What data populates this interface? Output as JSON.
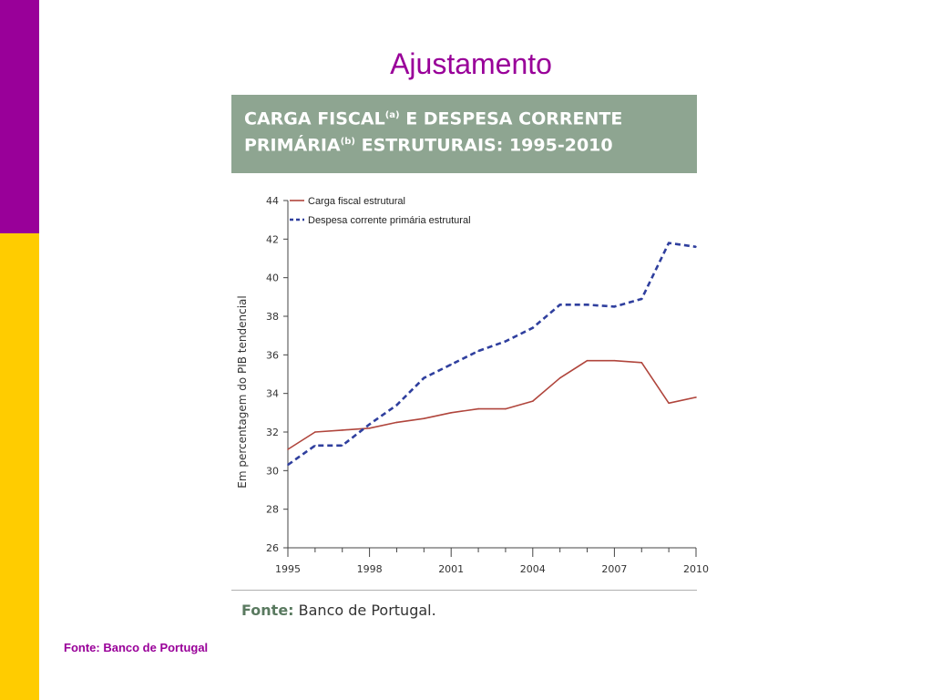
{
  "slide": {
    "title": "Ajustamento",
    "footer_source": "Fonte: Banco de Portugal"
  },
  "chart_header": {
    "title_line1": "CARGA FISCAL",
    "title_sup1": "(a)",
    "title_line1_rest": " E DESPESA CORRENTE",
    "title_line2": "PRIMÁRIA",
    "title_sup2": "(b)",
    "title_line2_rest": " ESTRUTURAIS: 1995-2010"
  },
  "chart_source": {
    "label": "Fonte:",
    "text": " Banco de Portugal."
  },
  "colors": {
    "accent": "#990099",
    "side_top": "#990099",
    "side_bottom": "#ffcc00",
    "header_bg": "#8ea591",
    "series_1": "#b0453c",
    "series_2": "#2f3f9e"
  },
  "chart_data": {
    "type": "line",
    "ylabel": "Em percentagem do PIB tendencial",
    "ylim": [
      26,
      44
    ],
    "yticks": [
      26,
      28,
      30,
      32,
      34,
      36,
      38,
      40,
      42,
      44
    ],
    "xlim": [
      1995,
      2010
    ],
    "xticks": [
      1995,
      1998,
      2001,
      2004,
      2007,
      2010
    ],
    "legend_position": "top-left",
    "series": [
      {
        "name": "Carga fiscal estrutural",
        "style": "solid",
        "x": [
          1995,
          1996,
          1997,
          1998,
          1999,
          2000,
          2001,
          2002,
          2003,
          2004,
          2005,
          2006,
          2007,
          2008,
          2009,
          2010
        ],
        "values": [
          31.1,
          32.0,
          32.1,
          32.2,
          32.5,
          32.7,
          33.0,
          33.2,
          33.2,
          33.6,
          34.8,
          35.7,
          35.7,
          35.6,
          33.5,
          33.8
        ]
      },
      {
        "name": "Despesa corrente primária estrutural",
        "style": "dashed",
        "x": [
          1995,
          1996,
          1997,
          1998,
          1999,
          2000,
          2001,
          2002,
          2003,
          2004,
          2005,
          2006,
          2007,
          2008,
          2009,
          2010
        ],
        "values": [
          30.3,
          31.3,
          31.3,
          32.4,
          33.4,
          34.8,
          35.5,
          36.2,
          36.7,
          37.4,
          38.6,
          38.6,
          38.5,
          38.9,
          41.8,
          41.6
        ]
      }
    ]
  }
}
